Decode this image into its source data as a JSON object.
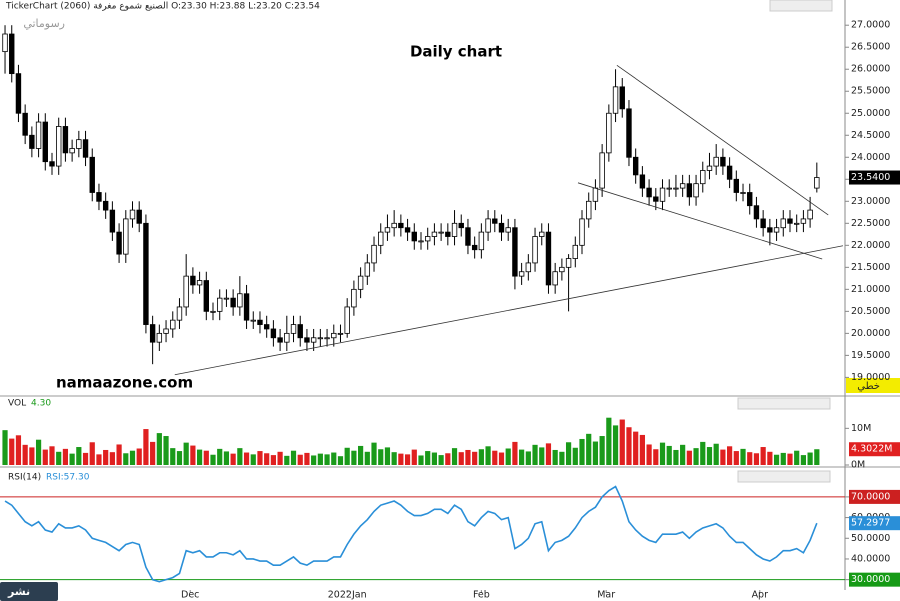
{
  "header": "TickerChart الصنيع شموع مغرفة (2060) O:23.30 H:23.88 L:23.20 C:23.54",
  "top_right_label": "رسوماتي",
  "title": "Daily chart",
  "watermark": "namaazone.com",
  "corner_label": "خطي",
  "badge": "نشر",
  "chart_data": [
    {
      "type": "candlestick",
      "up_color": "#ffffff",
      "down_color": "#000000",
      "xlim": [
        -0.75,
        125.2
      ],
      "ylim": [
        18.6,
        27.3
      ],
      "yticks": [
        {
          "value": 19,
          "label": "19.0000"
        },
        {
          "value": 19.5,
          "label": "19.5000"
        },
        {
          "value": 20,
          "label": "20.0000"
        },
        {
          "value": 20.5,
          "label": "20.5000"
        },
        {
          "value": 21,
          "label": "21.0000"
        },
        {
          "value": 21.5,
          "label": "21.5000"
        },
        {
          "value": 22,
          "label": "22.0000"
        },
        {
          "value": 22.5,
          "label": "22.5000"
        },
        {
          "value": 23,
          "label": "23.0000"
        },
        {
          "value": 23.5,
          "label": "23.5000"
        },
        {
          "value": 24,
          "label": "24.0000"
        },
        {
          "value": 24.5,
          "label": "24.5000"
        },
        {
          "value": 25,
          "label": "25.0000"
        },
        {
          "value": 25.5,
          "label": "25.5000"
        },
        {
          "value": 26,
          "label": "26.0000"
        },
        {
          "value": 26.5,
          "label": "26.5000"
        },
        {
          "value": 27,
          "label": "27.0000"
        }
      ],
      "last_label": {
        "value": 23.54,
        "label": "23.5400"
      },
      "trendlines": [
        {
          "x": [
            91.2,
            122.7
          ],
          "y": [
            26.09,
            22.69
          ]
        },
        {
          "x": [
            85.4,
            121.8
          ],
          "y": [
            23.42,
            21.69
          ]
        },
        {
          "x": [
            25.3,
            124.9
          ],
          "y": [
            19.06,
            21.99
          ]
        }
      ],
      "candles": [
        [
          26.4,
          27.0,
          25.9,
          26.8
        ],
        [
          26.8,
          27.0,
          25.7,
          25.9
        ],
        [
          25.9,
          26.1,
          24.8,
          25.0
        ],
        [
          25.0,
          25.2,
          24.3,
          24.5
        ],
        [
          24.5,
          24.7,
          24.0,
          24.2
        ],
        [
          24.2,
          25.0,
          24.0,
          24.8
        ],
        [
          24.8,
          25.0,
          23.7,
          23.9
        ],
        [
          23.9,
          24.1,
          23.6,
          23.8
        ],
        [
          23.8,
          24.9,
          23.6,
          24.7
        ],
        [
          24.7,
          24.9,
          23.9,
          24.1
        ],
        [
          24.1,
          24.4,
          23.9,
          24.2
        ],
        [
          24.2,
          24.6,
          24.0,
          24.4
        ],
        [
          24.4,
          24.6,
          23.8,
          24.0
        ],
        [
          24.0,
          24.2,
          23.0,
          23.2
        ],
        [
          23.2,
          23.4,
          22.8,
          23.0
        ],
        [
          23.0,
          23.2,
          22.6,
          22.8
        ],
        [
          22.8,
          23.0,
          22.1,
          22.3
        ],
        [
          22.3,
          22.5,
          21.6,
          21.8
        ],
        [
          21.8,
          22.8,
          21.6,
          22.6
        ],
        [
          22.6,
          23.0,
          22.4,
          22.8
        ],
        [
          22.8,
          23.0,
          22.3,
          22.5
        ],
        [
          22.5,
          22.7,
          20.0,
          20.2
        ],
        [
          20.2,
          20.4,
          19.3,
          19.8
        ],
        [
          19.8,
          20.2,
          19.6,
          20.0
        ],
        [
          20.0,
          20.3,
          19.8,
          20.1
        ],
        [
          20.1,
          20.5,
          19.9,
          20.3
        ],
        [
          20.3,
          20.8,
          20.1,
          20.6
        ],
        [
          20.6,
          21.8,
          20.4,
          21.3
        ],
        [
          21.3,
          21.5,
          20.9,
          21.1
        ],
        [
          21.1,
          21.4,
          20.9,
          21.2
        ],
        [
          21.2,
          21.4,
          20.3,
          20.5
        ],
        [
          20.5,
          20.7,
          20.3,
          20.5
        ],
        [
          20.5,
          21.0,
          20.3,
          20.8
        ],
        [
          20.8,
          21.0,
          20.6,
          20.8
        ],
        [
          20.8,
          21.0,
          20.4,
          20.6
        ],
        [
          20.6,
          21.3,
          20.4,
          20.9
        ],
        [
          20.9,
          21.1,
          20.1,
          20.3
        ],
        [
          20.3,
          20.5,
          20.1,
          20.3
        ],
        [
          20.3,
          20.5,
          20.0,
          20.2
        ],
        [
          20.2,
          20.4,
          19.9,
          20.1
        ],
        [
          20.1,
          20.3,
          19.7,
          19.9
        ],
        [
          19.9,
          20.1,
          19.6,
          19.8
        ],
        [
          19.8,
          20.4,
          19.6,
          20.0
        ],
        [
          20.0,
          20.4,
          19.8,
          20.2
        ],
        [
          20.2,
          20.4,
          19.7,
          19.9
        ],
        [
          19.9,
          20.1,
          19.6,
          19.8
        ],
        [
          19.8,
          20.1,
          19.6,
          19.9
        ],
        [
          19.9,
          20.1,
          19.7,
          19.9
        ],
        [
          19.9,
          20.1,
          19.7,
          19.9
        ],
        [
          19.9,
          20.2,
          19.7,
          20.0
        ],
        [
          20.0,
          20.2,
          19.8,
          20.0
        ],
        [
          20.0,
          20.8,
          19.9,
          20.6
        ],
        [
          20.6,
          21.2,
          20.4,
          21.0
        ],
        [
          21.0,
          21.5,
          20.8,
          21.3
        ],
        [
          21.3,
          21.8,
          21.1,
          21.6
        ],
        [
          21.6,
          22.2,
          21.4,
          22.0
        ],
        [
          22.0,
          22.5,
          21.8,
          22.3
        ],
        [
          22.3,
          22.7,
          22.1,
          22.4
        ],
        [
          22.4,
          22.8,
          22.2,
          22.5
        ],
        [
          22.5,
          22.7,
          22.2,
          22.4
        ],
        [
          22.4,
          22.6,
          22.1,
          22.3
        ],
        [
          22.3,
          22.5,
          21.9,
          22.1
        ],
        [
          22.1,
          22.3,
          21.9,
          22.1
        ],
        [
          22.1,
          22.4,
          21.9,
          22.2
        ],
        [
          22.2,
          22.5,
          22.0,
          22.3
        ],
        [
          22.3,
          22.5,
          22.1,
          22.3
        ],
        [
          22.3,
          22.5,
          22.0,
          22.2
        ],
        [
          22.2,
          22.8,
          22.0,
          22.5
        ],
        [
          22.5,
          22.7,
          22.2,
          22.4
        ],
        [
          22.4,
          22.6,
          21.8,
          22.0
        ],
        [
          22.0,
          22.2,
          21.7,
          21.9
        ],
        [
          21.9,
          22.5,
          21.7,
          22.3
        ],
        [
          22.3,
          22.8,
          22.1,
          22.6
        ],
        [
          22.6,
          22.8,
          22.3,
          22.5
        ],
        [
          22.5,
          22.7,
          22.1,
          22.3
        ],
        [
          22.3,
          22.6,
          22.1,
          22.4
        ],
        [
          22.4,
          22.6,
          21.0,
          21.3
        ],
        [
          21.3,
          21.6,
          21.1,
          21.4
        ],
        [
          21.4,
          21.8,
          21.2,
          21.6
        ],
        [
          21.6,
          22.4,
          21.4,
          22.2
        ],
        [
          22.2,
          22.5,
          22.0,
          22.3
        ],
        [
          22.3,
          22.5,
          20.9,
          21.1
        ],
        [
          21.1,
          21.6,
          20.9,
          21.4
        ],
        [
          21.4,
          21.7,
          21.2,
          21.5
        ],
        [
          21.5,
          21.8,
          20.5,
          21.7
        ],
        [
          21.7,
          22.2,
          21.5,
          22.0
        ],
        [
          22.0,
          22.8,
          21.8,
          22.6
        ],
        [
          22.6,
          23.2,
          22.4,
          23.0
        ],
        [
          23.0,
          23.5,
          22.8,
          23.3
        ],
        [
          23.3,
          24.3,
          23.1,
          24.1
        ],
        [
          24.1,
          25.2,
          23.9,
          25.0
        ],
        [
          25.0,
          26.0,
          24.8,
          25.6
        ],
        [
          25.6,
          25.8,
          24.9,
          25.1
        ],
        [
          25.1,
          25.3,
          23.8,
          24.0
        ],
        [
          24.0,
          24.2,
          23.4,
          23.6
        ],
        [
          23.6,
          23.8,
          23.1,
          23.3
        ],
        [
          23.3,
          23.5,
          22.9,
          23.1
        ],
        [
          23.1,
          23.3,
          22.8,
          23.0
        ],
        [
          23.0,
          23.5,
          22.8,
          23.3
        ],
        [
          23.3,
          23.5,
          23.1,
          23.3
        ],
        [
          23.3,
          23.6,
          23.1,
          23.3
        ],
        [
          23.3,
          23.6,
          23.1,
          23.4
        ],
        [
          23.4,
          23.6,
          22.9,
          23.1
        ],
        [
          23.1,
          23.6,
          22.9,
          23.4
        ],
        [
          23.4,
          23.9,
          23.2,
          23.7
        ],
        [
          23.7,
          24.1,
          23.5,
          23.8
        ],
        [
          23.8,
          24.3,
          23.6,
          24.0
        ],
        [
          24.0,
          24.2,
          23.6,
          23.8
        ],
        [
          23.8,
          24.0,
          23.3,
          23.5
        ],
        [
          23.5,
          23.7,
          23.0,
          23.2
        ],
        [
          23.2,
          23.4,
          23.0,
          23.2
        ],
        [
          23.2,
          23.4,
          22.7,
          22.9
        ],
        [
          22.9,
          23.1,
          22.4,
          22.6
        ],
        [
          22.6,
          22.8,
          22.2,
          22.4
        ],
        [
          22.4,
          22.6,
          22.0,
          22.3
        ],
        [
          22.3,
          22.6,
          22.1,
          22.4
        ],
        [
          22.4,
          22.8,
          22.2,
          22.6
        ],
        [
          22.6,
          22.8,
          22.3,
          22.5
        ],
        [
          22.5,
          22.7,
          22.3,
          22.5
        ],
        [
          22.5,
          22.8,
          22.3,
          22.6
        ],
        [
          22.6,
          23.1,
          22.4,
          22.8
        ],
        [
          23.3,
          23.88,
          23.2,
          23.54
        ]
      ]
    },
    {
      "type": "bar",
      "label": "VOL",
      "value_text": "4.30",
      "up_color": "#1a9a1a",
      "down_color": "#e02020",
      "xlim": [
        -0.75,
        125.2
      ],
      "ylim": [
        0,
        15
      ],
      "yticks": [
        {
          "value": 0,
          "label": "0M"
        },
        {
          "value": 10,
          "label": "10M"
        }
      ],
      "last_label": {
        "value": 4.3022,
        "label": "4.3022M"
      },
      "values": [
        9.5,
        7.2,
        8.1,
        5.5,
        4.8,
        6.9,
        4.2,
        5.1,
        3.6,
        4.4,
        3.1,
        4.9,
        3.3,
        6.2,
        2.9,
        4.1,
        3.5,
        5.6,
        3.2,
        3.9,
        4.5,
        9.8,
        6.3,
        8.7,
        7.9,
        4.6,
        3.8,
        6.1,
        5.3,
        4.2,
        3.9,
        2.8,
        4.4,
        3.7,
        3.1,
        4.6,
        3.4,
        2.9,
        3.8,
        3.2,
        2.7,
        3.6,
        2.5,
        3.9,
        2.8,
        3.3,
        2.6,
        3.1,
        2.9,
        3.4,
        2.4,
        4.7,
        3.9,
        5.2,
        3.6,
        6.1,
        4.3,
        4.8,
        3.5,
        3.1,
        2.9,
        4.2,
        2.6,
        3.8,
        3.4,
        2.7,
        3.2,
        4.6,
        3.5,
        4.1,
        3.6,
        4.3,
        5.1,
        3.9,
        3.4,
        4.5,
        6.3,
        4.2,
        3.7,
        5.5,
        4.8,
        5.9,
        4.1,
        3.6,
        6.2,
        4.7,
        7.1,
        8.5,
        6.4,
        7.9,
        12.9,
        10.8,
        12.4,
        10.3,
        9.1,
        8.2,
        5.6,
        4.3,
        6.1,
        5.2,
        4.1,
        5.5,
        3.9,
        4.6,
        6.3,
        4.9,
        5.8,
        4.2,
        5.1,
        3.8,
        4.4,
        3.5,
        3.2,
        4.9,
        3.6,
        2.8,
        3.3,
        3.1,
        3.9,
        2.7,
        3.4,
        4.3022
      ]
    },
    {
      "type": "line",
      "label": "RSI(14)",
      "value_text": "RSI:57.30",
      "color": "#2a8fd8",
      "xlim": [
        -0.75,
        125.2
      ],
      "ylim": [
        25,
        83
      ],
      "yticks": [
        {
          "value": 30,
          "label": "30.0000"
        },
        {
          "value": 40,
          "label": "40.0000"
        },
        {
          "value": 50,
          "label": "50.0000"
        },
        {
          "value": 60,
          "label": "60.0000"
        },
        {
          "value": 70,
          "label": "70.0000"
        }
      ],
      "upper_line": 70,
      "lower_line": 30,
      "upper_color": "#cc2020",
      "lower_color": "#169a16",
      "last_label": {
        "value": 57.2977,
        "label": "57.2977"
      },
      "xticks": [
        {
          "value": 27.6,
          "label": "Dec"
        },
        {
          "value": 51,
          "label": "2022Jan"
        },
        {
          "value": 71,
          "label": "Feb"
        },
        {
          "value": 89.6,
          "label": "Mar"
        },
        {
          "value": 112.5,
          "label": "Apr"
        }
      ],
      "values": [
        68,
        66,
        62,
        58,
        56,
        58,
        54,
        53,
        57,
        55,
        55,
        56,
        54,
        50,
        49,
        48,
        46,
        44,
        47,
        48,
        47,
        36,
        30,
        29,
        30,
        31,
        33,
        44,
        43,
        44,
        41,
        41,
        43,
        43,
        42,
        44,
        40,
        40,
        39,
        39,
        37,
        37,
        39,
        41,
        38,
        37,
        39,
        39,
        39,
        41,
        41,
        47,
        52,
        56,
        59,
        63,
        66,
        67,
        68,
        66,
        63,
        61,
        61,
        62,
        64,
        64,
        62,
        66,
        64,
        58,
        56,
        60,
        63,
        62,
        59,
        60,
        45,
        47,
        50,
        57,
        58,
        44,
        48,
        49,
        51,
        55,
        60,
        63,
        65,
        70,
        73,
        75,
        68,
        58,
        54,
        51,
        49,
        48,
        52,
        52,
        52,
        53,
        50,
        53,
        55,
        56,
        57,
        55,
        51,
        48,
        48,
        45,
        42,
        40,
        39,
        41,
        44,
        44,
        45,
        43,
        49,
        57.2977
      ]
    }
  ]
}
